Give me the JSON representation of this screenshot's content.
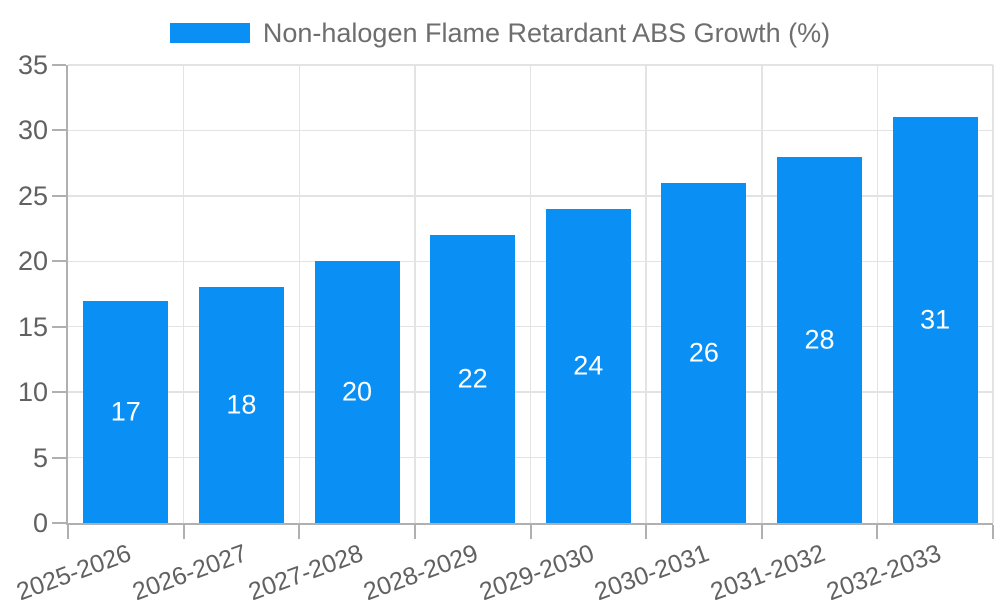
{
  "chart_data": {
    "type": "bar",
    "title": "",
    "legend": "Non-halogen Flame Retardant ABS Growth (%)",
    "legend_position": "top",
    "categories": [
      "2025-2026",
      "2026-2027",
      "2027-2028",
      "2028-2029",
      "2029-2030",
      "2030-2031",
      "2031-2032",
      "2032-2033"
    ],
    "values": [
      17,
      18,
      20,
      22,
      24,
      26,
      28,
      31
    ],
    "xlabel": "",
    "ylabel": "",
    "ylim": [
      0,
      35
    ],
    "yticks": [
      0,
      5,
      10,
      15,
      20,
      25,
      30,
      35
    ],
    "grid": true,
    "x_label_rotation_deg": -20,
    "colors": {
      "bar": "#0a90f5",
      "bar_label": "#ffffff",
      "axis_line": "#b0b0b0",
      "grid_line": "#e3e3e3",
      "tick_label": "#616161",
      "legend_text": "#6e6e6e",
      "background": "#ffffff"
    }
  }
}
